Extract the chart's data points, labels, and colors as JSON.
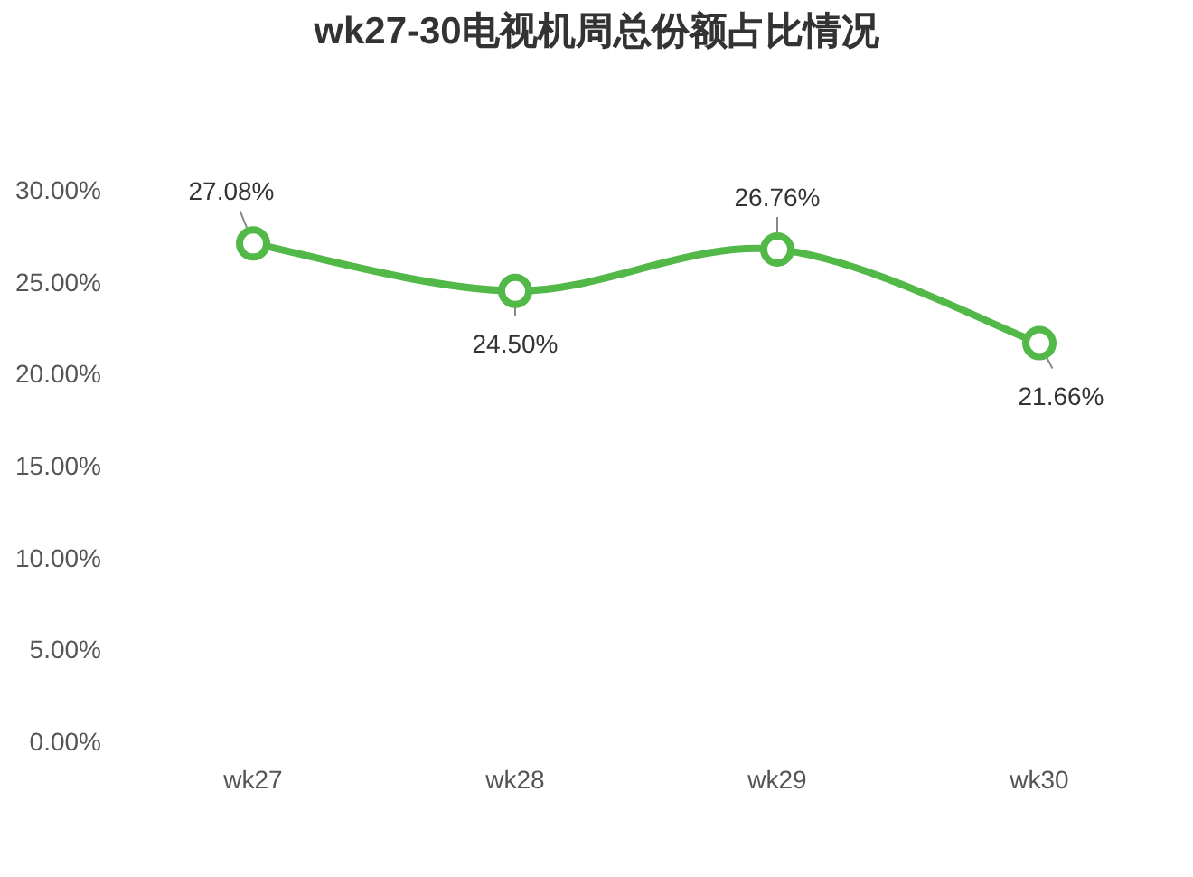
{
  "chart_data": {
    "type": "line",
    "title": "wk27-30电视机周总份额占比情况",
    "categories": [
      "wk27",
      "wk28",
      "wk29",
      "wk30"
    ],
    "values": [
      27.08,
      24.5,
      26.76,
      21.66
    ],
    "value_labels": [
      "27.08%",
      "24.50%",
      "26.76%",
      "21.66%"
    ],
    "color": "#52b948",
    "marker": "circle",
    "line_style": "solid",
    "grid": false,
    "ylim": [
      0,
      30
    ],
    "yticks": [
      {
        "value": 0,
        "label": "0.00%"
      },
      {
        "value": 5,
        "label": "5.00%"
      },
      {
        "value": 10,
        "label": "10.00%"
      },
      {
        "value": 15,
        "label": "15.00%"
      },
      {
        "value": 20,
        "label": "20.00%"
      },
      {
        "value": 25,
        "label": "25.00%"
      },
      {
        "value": 30,
        "label": "30.00%"
      }
    ]
  }
}
